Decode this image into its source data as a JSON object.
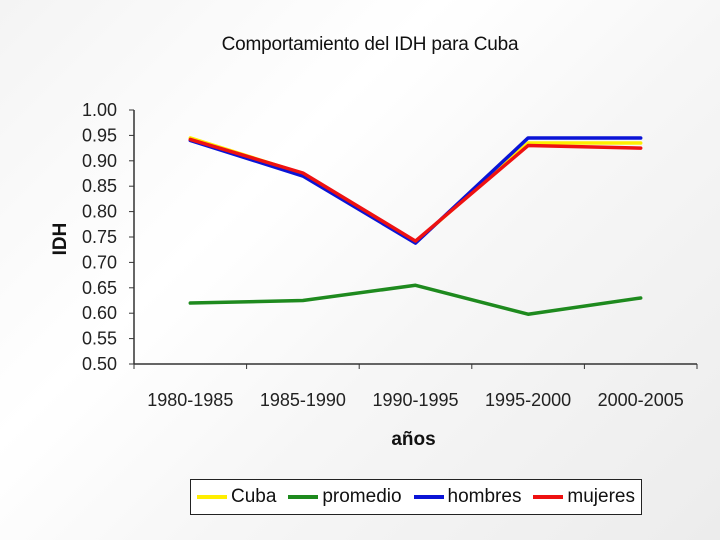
{
  "chart_data": {
    "type": "line",
    "title": "Comportamiento del IDH para Cuba",
    "xlabel": "años",
    "ylabel": "IDH",
    "categories": [
      "1980-1985",
      "1985-1990",
      "1990-1995",
      "1995-2000",
      "2000-2005"
    ],
    "ylim": [
      0.5,
      1.0
    ],
    "yticks": [
      "1.00",
      "0.95",
      "0.90",
      "0.85",
      "0.80",
      "0.75",
      "0.70",
      "0.65",
      "0.60",
      "0.55",
      "0.50"
    ],
    "grid": false,
    "legend_position": "bottom",
    "series": [
      {
        "name": "Cuba",
        "color": "#ffee00",
        "values": [
          0.945,
          0.875,
          0.74,
          0.935,
          0.935
        ]
      },
      {
        "name": "promedio",
        "color": "#1e8a1e",
        "values": [
          0.62,
          0.625,
          0.655,
          0.598,
          0.63
        ]
      },
      {
        "name": "hombres",
        "color": "#0a14d6",
        "values": [
          0.94,
          0.87,
          0.738,
          0.945,
          0.945
        ]
      },
      {
        "name": "mujeres",
        "color": "#ee1111",
        "values": [
          0.942,
          0.876,
          0.742,
          0.93,
          0.925
        ]
      }
    ]
  }
}
